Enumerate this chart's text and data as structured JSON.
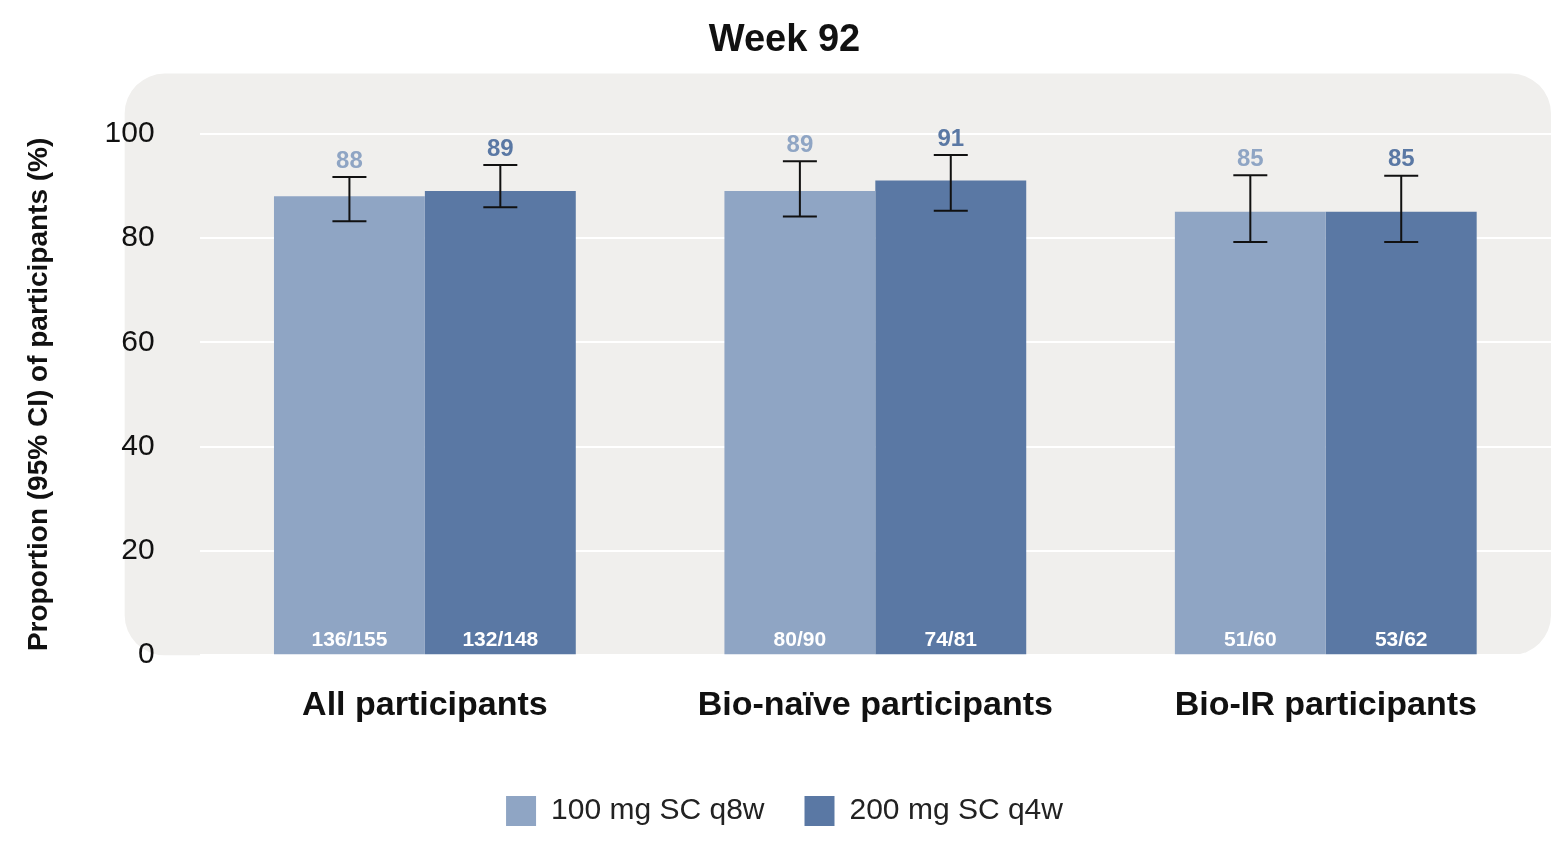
{
  "chart_data": {
    "type": "bar",
    "title": "Week 92",
    "ylabel": "Proportion (95% CI) of participants (%)",
    "categories": [
      "All participants",
      "Bio-naïve participants",
      "Bio-IR participants"
    ],
    "series": [
      {
        "name": "100 mg SC q8w",
        "color": "#8fa5c4",
        "values": [
          88,
          89,
          85
        ],
        "errors": [
          [
            83.2,
            91.7
          ],
          [
            84.1,
            94.7
          ],
          [
            79.2,
            92
          ]
        ],
        "value_labels": [
          "88",
          "89",
          "85"
        ]
      },
      {
        "name": "200 mg SC q4w",
        "color": "#5a78a4",
        "values": [
          89,
          91,
          85
        ],
        "errors": [
          [
            85.9,
            94
          ],
          [
            85.2,
            95.9
          ],
          [
            79.2,
            91.9
          ]
        ],
        "value_labels": [
          "89",
          "91",
          "85"
        ]
      }
    ],
    "annotations": [
      {
        "text": "136/155",
        "x": "All participants",
        "y": 0
      },
      {
        "text": "132/148",
        "x": "All participants",
        "y": 0
      },
      {
        "text": "80/90",
        "x": "Bio-naïve participants",
        "y": 0
      },
      {
        "text": "74/81",
        "x": "Bio-naïve participants",
        "y": 0
      },
      {
        "text": "51/60",
        "x": "Bio-IR participants",
        "y": 0
      },
      {
        "text": "53/62",
        "x": "Bio-IR participants",
        "y": 0
      }
    ],
    "ylim": [
      0,
      100
    ],
    "yticks": [
      0,
      20,
      40,
      60,
      80,
      100
    ],
    "grid": "y",
    "legend": "bottom"
  }
}
